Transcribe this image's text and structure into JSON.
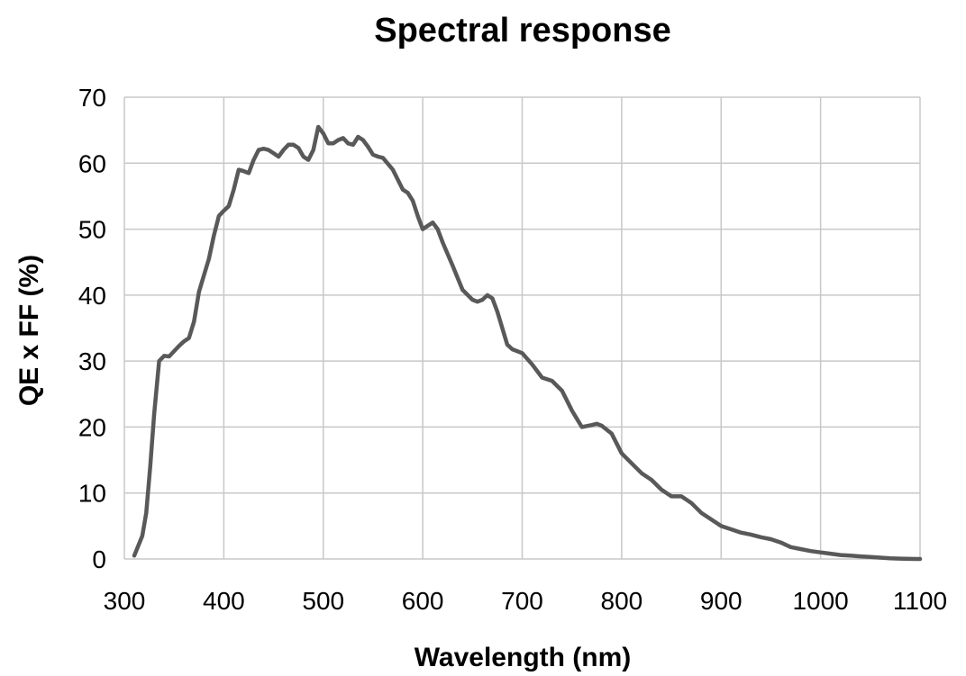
{
  "chart_data": {
    "type": "line",
    "title": "Spectral response",
    "xlabel": "Wavelength (nm)",
    "ylabel": "QE x FF (%)",
    "xlim": [
      300,
      1100
    ],
    "ylim": [
      0,
      70
    ],
    "xticks": [
      300,
      400,
      500,
      600,
      700,
      800,
      900,
      1000,
      1100
    ],
    "yticks": [
      0,
      10,
      20,
      30,
      40,
      50,
      60,
      70
    ],
    "grid": true,
    "legend": "none",
    "line_color": "#595959",
    "series": [
      {
        "x": [
          310,
          318,
          322,
          326,
          330,
          335,
          340,
          345,
          350,
          355,
          360,
          365,
          370,
          375,
          380,
          385,
          390,
          395,
          400,
          405,
          410,
          415,
          420,
          425,
          430,
          435,
          440,
          445,
          450,
          455,
          460,
          465,
          470,
          475,
          480,
          485,
          490,
          495,
          500,
          505,
          510,
          515,
          520,
          525,
          530,
          535,
          540,
          545,
          550,
          555,
          560,
          570,
          580,
          585,
          590,
          595,
          600,
          605,
          610,
          615,
          620,
          630,
          640,
          650,
          655,
          660,
          665,
          670,
          675,
          680,
          685,
          690,
          700,
          710,
          720,
          730,
          740,
          750,
          760,
          770,
          775,
          780,
          790,
          800,
          810,
          820,
          830,
          840,
          850,
          860,
          870,
          880,
          890,
          900,
          910,
          920,
          930,
          940,
          950,
          960,
          970,
          980,
          990,
          1000,
          1010,
          1020,
          1030,
          1040,
          1050,
          1060,
          1070,
          1080,
          1090,
          1100
        ],
        "y": [
          0.5,
          3.5,
          7,
          14,
          22,
          30,
          30.8,
          30.7,
          31.5,
          32.3,
          33,
          33.5,
          36,
          40.5,
          43,
          45.5,
          49,
          52,
          52.8,
          53.5,
          56,
          59,
          58.8,
          58.5,
          60.5,
          62,
          62.2,
          62,
          61.5,
          61,
          62,
          62.8,
          62.8,
          62.3,
          61,
          60.5,
          62,
          65.5,
          64.5,
          63,
          63,
          63.5,
          63.8,
          63,
          62.8,
          64,
          63.5,
          62.5,
          61.3,
          61,
          60.8,
          59,
          56,
          55.5,
          54.3,
          52,
          50,
          50.5,
          51,
          50,
          48,
          44.5,
          40.8,
          39.3,
          39,
          39.3,
          40,
          39.5,
          37.5,
          35,
          32.5,
          31.8,
          31.2,
          29.5,
          27.5,
          27,
          25.5,
          22.5,
          20,
          20.3,
          20.5,
          20.2,
          19,
          16,
          14.5,
          13,
          12,
          10.5,
          9.5,
          9.5,
          8.5,
          7,
          6,
          5,
          4.5,
          4,
          3.7,
          3.3,
          3,
          2.5,
          1.8,
          1.5,
          1.2,
          1,
          0.8,
          0.6,
          0.5,
          0.4,
          0.3,
          0.2,
          0.1,
          0.05,
          0.02,
          0
        ]
      }
    ]
  }
}
